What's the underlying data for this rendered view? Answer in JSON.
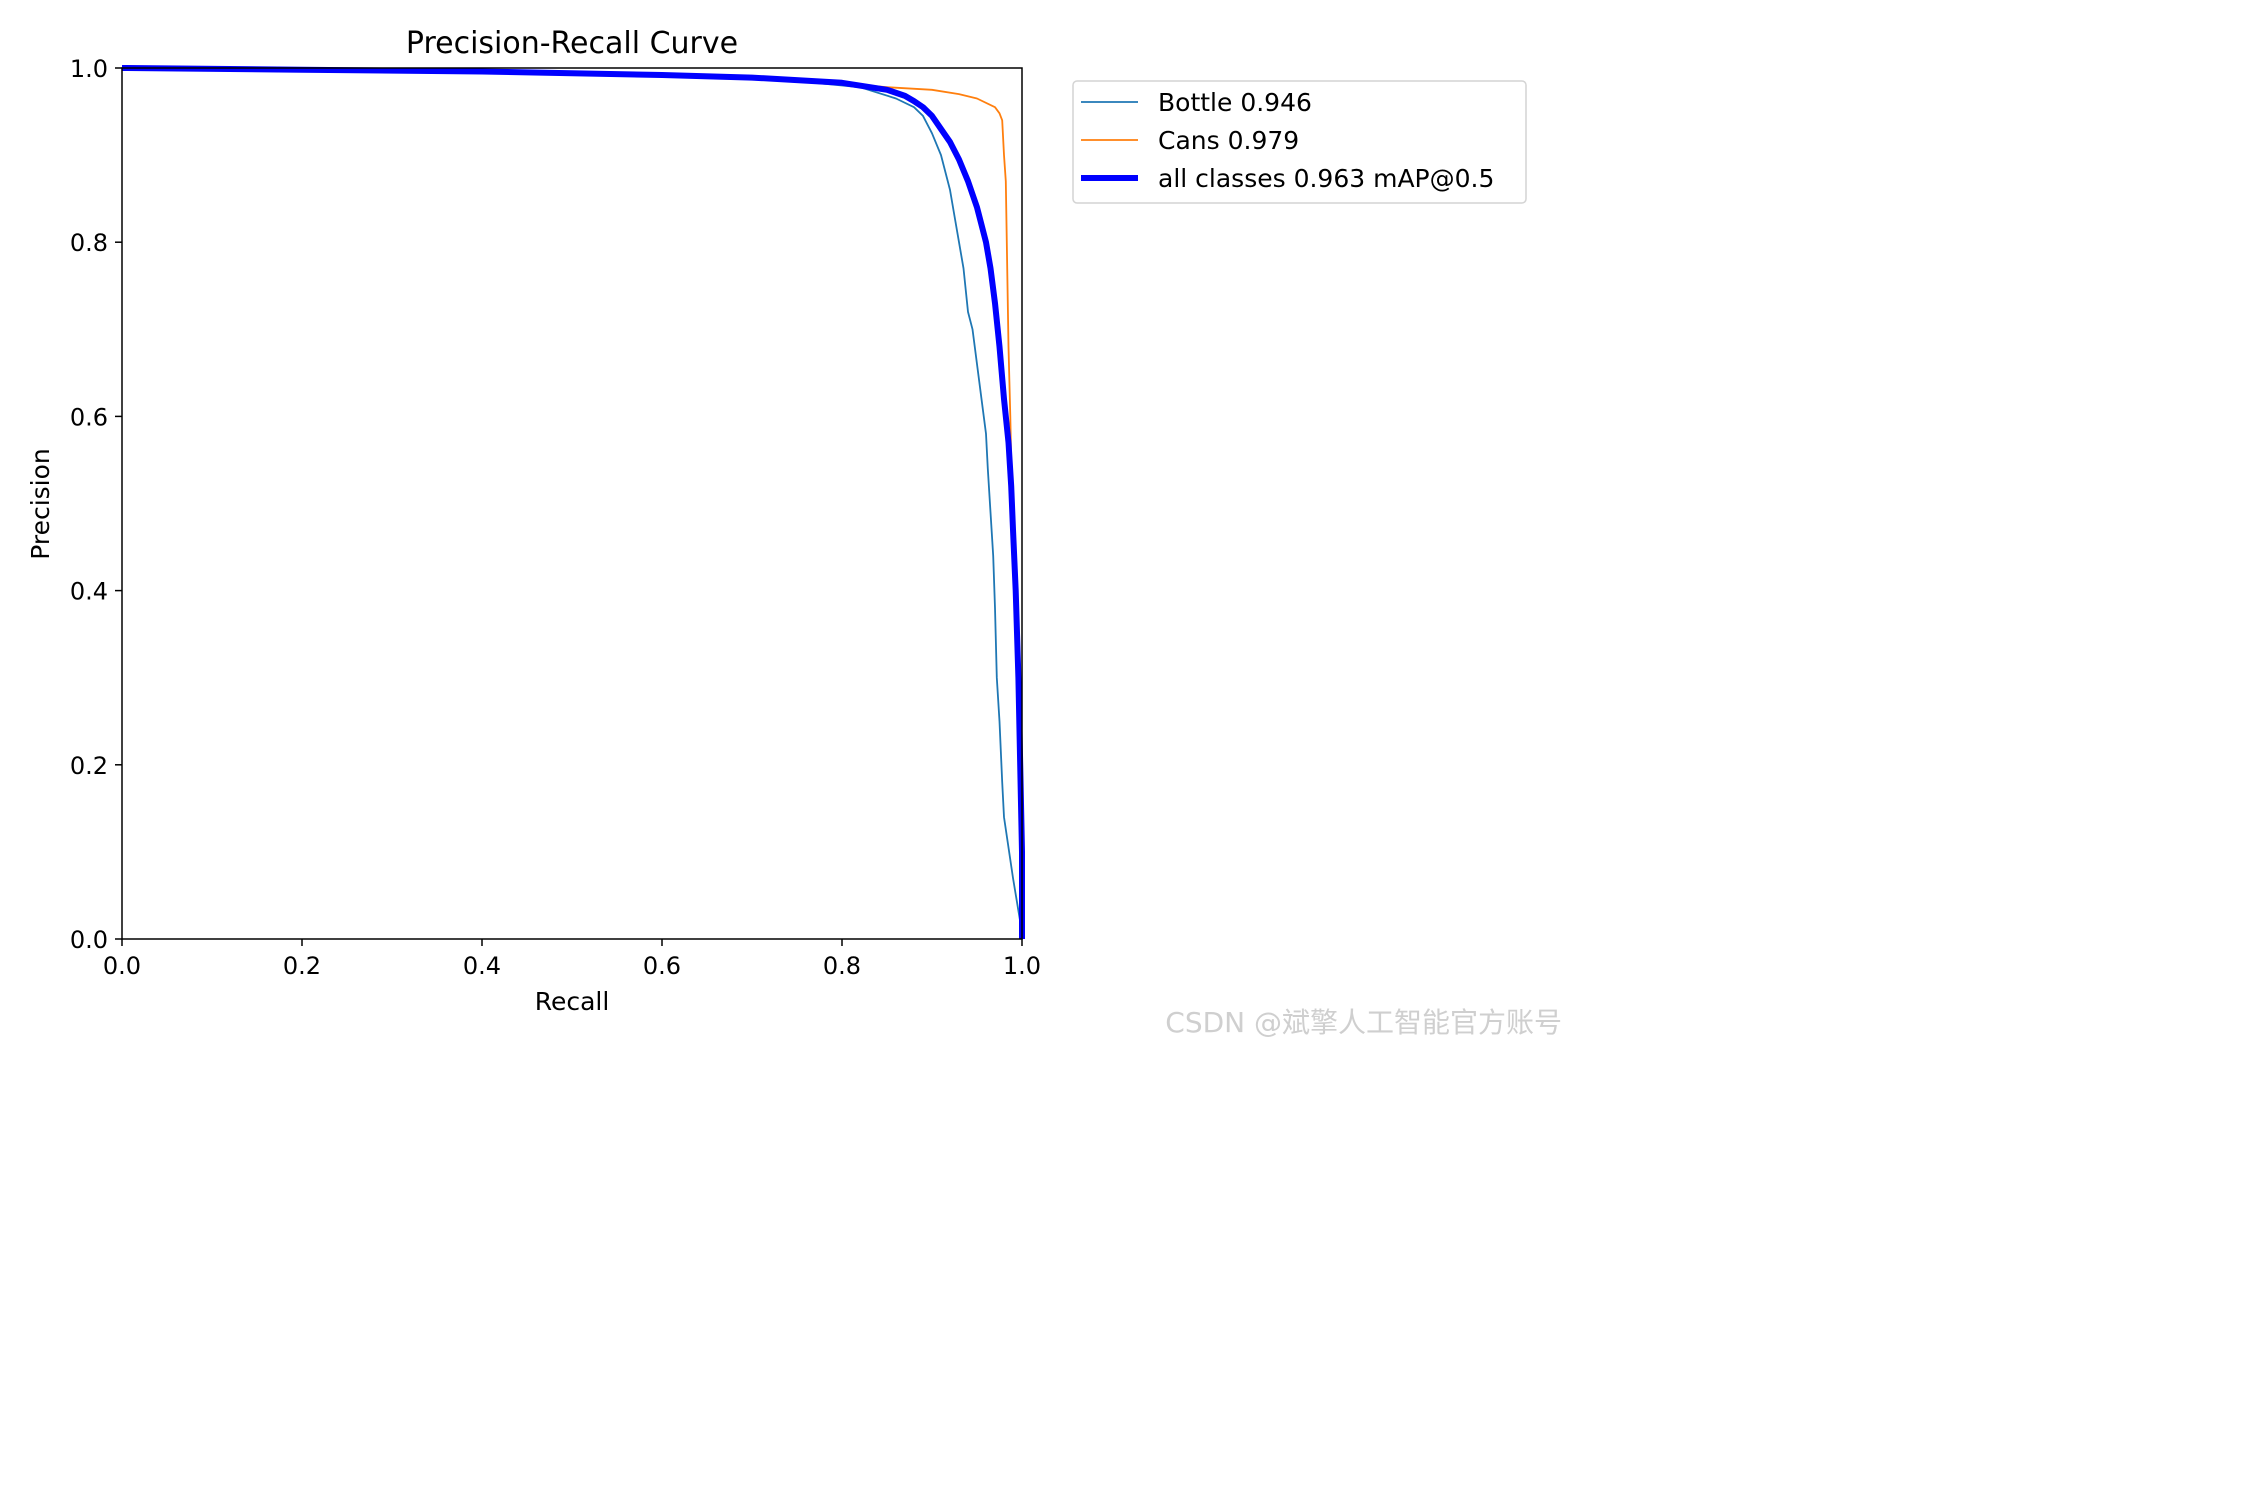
{
  "chart_data": {
    "type": "line",
    "title": "Precision-Recall Curve",
    "xlabel": "Recall",
    "ylabel": "Precision",
    "xlim": [
      0,
      1
    ],
    "ylim": [
      0,
      1
    ],
    "xticks": [
      "0.0",
      "0.2",
      "0.4",
      "0.6",
      "0.8",
      "1.0"
    ],
    "yticks": [
      "0.0",
      "0.2",
      "0.4",
      "0.6",
      "0.8",
      "1.0"
    ],
    "grid": false,
    "legend_position": "outside-right",
    "series": [
      {
        "name": "Bottle 0.946",
        "color": "#1f77b4",
        "linewidth": "thin",
        "points": [
          [
            0.0,
            1.0
          ],
          [
            0.18,
            0.999
          ],
          [
            0.3,
            0.997
          ],
          [
            0.5,
            0.994
          ],
          [
            0.65,
            0.99
          ],
          [
            0.75,
            0.985
          ],
          [
            0.82,
            0.978
          ],
          [
            0.86,
            0.965
          ],
          [
            0.88,
            0.955
          ],
          [
            0.89,
            0.945
          ],
          [
            0.9,
            0.925
          ],
          [
            0.91,
            0.9
          ],
          [
            0.915,
            0.88
          ],
          [
            0.92,
            0.86
          ],
          [
            0.925,
            0.83
          ],
          [
            0.93,
            0.8
          ],
          [
            0.935,
            0.77
          ],
          [
            0.94,
            0.72
          ],
          [
            0.945,
            0.7
          ],
          [
            0.95,
            0.66
          ],
          [
            0.955,
            0.62
          ],
          [
            0.96,
            0.58
          ],
          [
            0.962,
            0.54
          ],
          [
            0.965,
            0.49
          ],
          [
            0.968,
            0.44
          ],
          [
            0.97,
            0.38
          ],
          [
            0.972,
            0.3
          ],
          [
            0.975,
            0.25
          ],
          [
            0.978,
            0.18
          ],
          [
            0.98,
            0.14
          ],
          [
            0.99,
            0.07
          ],
          [
            0.998,
            0.02
          ]
        ]
      },
      {
        "name": "Cans 0.979",
        "color": "#ff7f0e",
        "linewidth": "thin",
        "points": [
          [
            0.0,
            1.0
          ],
          [
            0.3,
            0.998
          ],
          [
            0.5,
            0.994
          ],
          [
            0.7,
            0.988
          ],
          [
            0.8,
            0.982
          ],
          [
            0.85,
            0.978
          ],
          [
            0.9,
            0.975
          ],
          [
            0.93,
            0.97
          ],
          [
            0.95,
            0.965
          ],
          [
            0.97,
            0.955
          ],
          [
            0.975,
            0.948
          ],
          [
            0.978,
            0.94
          ],
          [
            0.98,
            0.9
          ],
          [
            0.982,
            0.87
          ],
          [
            0.985,
            0.68
          ],
          [
            0.987,
            0.6
          ],
          [
            0.989,
            0.5
          ],
          [
            0.99,
            0.45
          ],
          [
            0.993,
            0.35
          ],
          [
            0.995,
            0.3
          ],
          [
            0.997,
            0.2
          ],
          [
            0.998,
            0.1
          ],
          [
            1.0,
            0.02
          ]
        ]
      },
      {
        "name": "all classes 0.963 mAP@0.5",
        "color": "#0000ff",
        "linewidth": "thick",
        "points": [
          [
            0.0,
            1.0
          ],
          [
            0.2,
            0.998
          ],
          [
            0.4,
            0.996
          ],
          [
            0.6,
            0.992
          ],
          [
            0.7,
            0.989
          ],
          [
            0.8,
            0.983
          ],
          [
            0.85,
            0.975
          ],
          [
            0.87,
            0.968
          ],
          [
            0.88,
            0.962
          ],
          [
            0.89,
            0.955
          ],
          [
            0.9,
            0.945
          ],
          [
            0.91,
            0.93
          ],
          [
            0.92,
            0.915
          ],
          [
            0.93,
            0.895
          ],
          [
            0.94,
            0.87
          ],
          [
            0.95,
            0.84
          ],
          [
            0.955,
            0.82
          ],
          [
            0.96,
            0.8
          ],
          [
            0.965,
            0.77
          ],
          [
            0.97,
            0.73
          ],
          [
            0.975,
            0.68
          ],
          [
            0.98,
            0.62
          ],
          [
            0.985,
            0.57
          ],
          [
            0.988,
            0.52
          ],
          [
            0.99,
            0.47
          ],
          [
            0.993,
            0.4
          ],
          [
            0.996,
            0.3
          ],
          [
            0.998,
            0.2
          ],
          [
            1.0,
            0.1
          ],
          [
            1.0,
            0.0
          ]
        ]
      }
    ]
  },
  "watermark": "CSDN @斌擎人工智能官方账号"
}
